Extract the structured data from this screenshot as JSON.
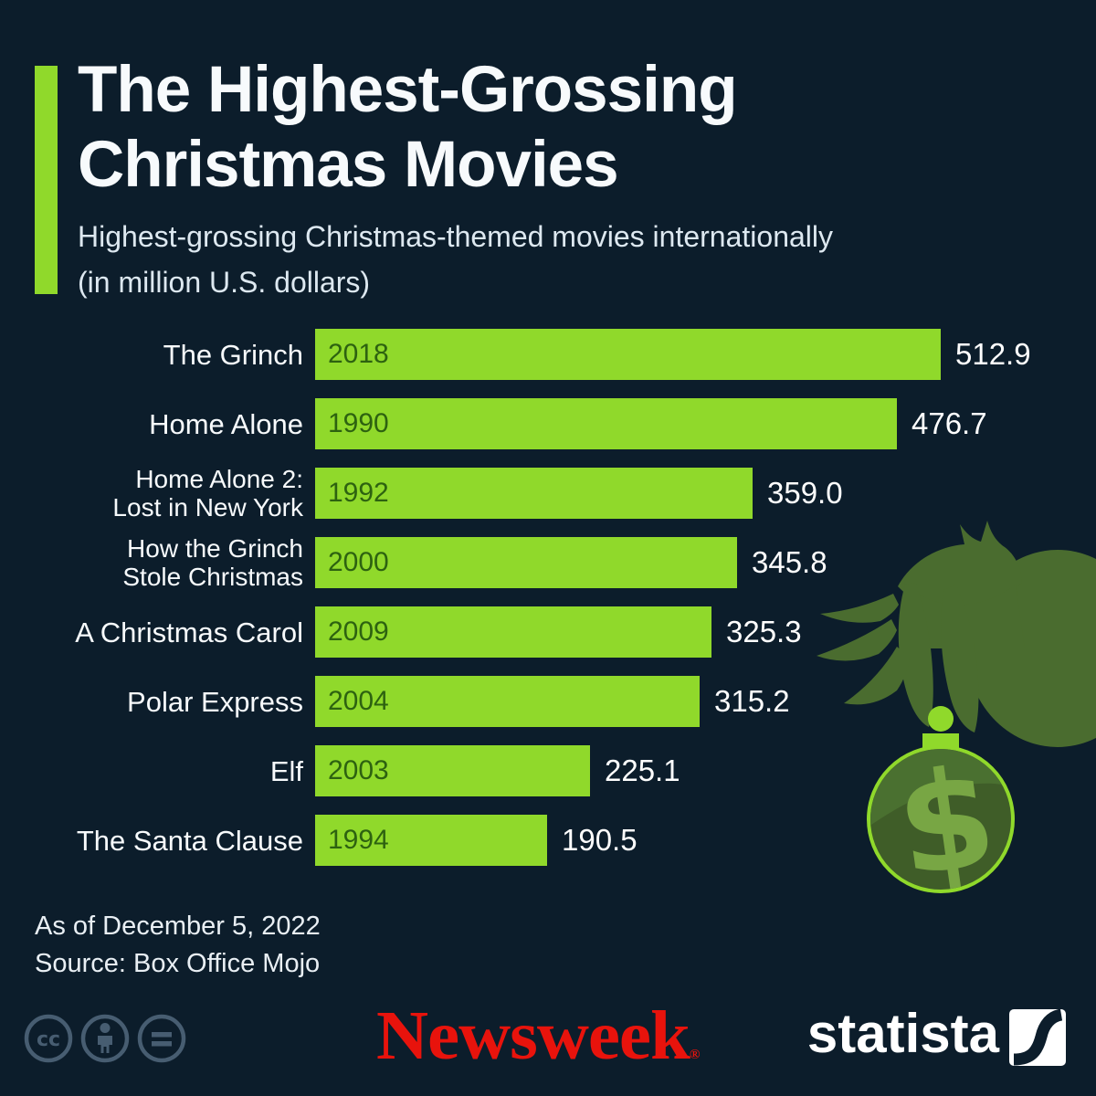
{
  "header": {
    "title_lines": [
      "The Highest-Grossing",
      "Christmas Movies"
    ],
    "subtitle_lines": [
      "Highest-grossing Christmas-themed movies internationally",
      "(in million U.S. dollars)"
    ]
  },
  "chart_data": {
    "type": "bar",
    "orientation": "horizontal",
    "title": "The Highest-Grossing Christmas Movies",
    "subtitle": "Highest-grossing Christmas-themed movies internationally (in million U.S. dollars)",
    "unit": "million U.S. dollars",
    "xlim": [
      0,
      512.9
    ],
    "grid": false,
    "legend": false,
    "value_labels": "end-of-bar",
    "rows": [
      {
        "label": "The Grinch",
        "label_lines": [
          "The Grinch"
        ],
        "year": "2018",
        "value": 512.9
      },
      {
        "label": "Home Alone",
        "label_lines": [
          "Home Alone"
        ],
        "year": "1990",
        "value": 476.7
      },
      {
        "label": "Home Alone 2: Lost in New York",
        "label_lines": [
          "Home Alone 2:",
          "Lost in New York"
        ],
        "year": "1992",
        "value": 359.0
      },
      {
        "label": "How the Grinch Stole Christmas",
        "label_lines": [
          "How the Grinch",
          "Stole Christmas"
        ],
        "year": "2000",
        "value": 345.8
      },
      {
        "label": "A Christmas Carol",
        "label_lines": [
          "A Christmas Carol"
        ],
        "year": "2009",
        "value": 325.3
      },
      {
        "label": "Polar Express",
        "label_lines": [
          "Polar Express"
        ],
        "year": "2004",
        "value": 315.2
      },
      {
        "label": "Elf",
        "label_lines": [
          "Elf"
        ],
        "year": "2003",
        "value": 225.1
      },
      {
        "label": "The Santa Clause",
        "label_lines": [
          "The Santa Clause"
        ],
        "year": "1994",
        "value": 190.5
      }
    ]
  },
  "footer": {
    "as_of": "As of December 5, 2022",
    "source": "Source: Box Office Mojo",
    "publisher_logo_text": "Newsweek",
    "publisher_reg_mark": "®",
    "brand_logo_text": "statista",
    "license_icons": [
      "creative-commons",
      "attribution",
      "no-derivatives"
    ]
  },
  "illustration": {
    "name": "grinch-hand-holding-dollar-ornament",
    "dollar_glyph": "$"
  },
  "colors": {
    "background": "#0c1d2b",
    "accent_lime": "#90d92b",
    "bar_year_text": "#2d6210",
    "title_text": "#f7fafc",
    "subtitle_text": "#dde8f0",
    "value_text": "#ffffff",
    "footnote_text": "#e9eff4",
    "license_icon": "#475d71",
    "newsweek_red": "#e8130c",
    "hand_green": "#4a6c2f",
    "ornament_fill": "#3f5d28",
    "ornament_light": "#4a7030",
    "dollar_green": "#78a644"
  }
}
